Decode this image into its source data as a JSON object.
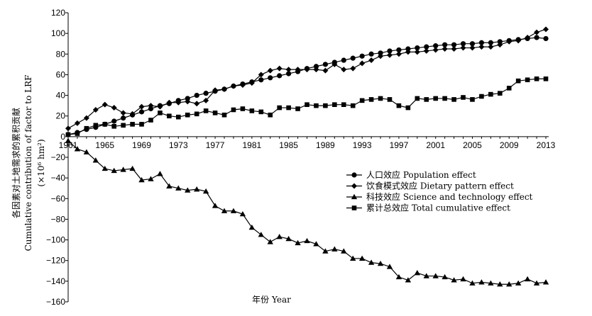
{
  "chart_data": {
    "type": "line",
    "title": "",
    "xlabel": "年份 Year",
    "ylabel_line1": "各因素对土地需求的累积贡献",
    "ylabel_line2": "Cumulative contribution of factor to LRF",
    "ylabel_unit": "(×10⁶ hm²)",
    "ylim": [
      -160,
      120
    ],
    "yticks": [
      -160,
      -140,
      -120,
      -100,
      -80,
      -60,
      -40,
      -20,
      0,
      20,
      40,
      60,
      80,
      100,
      120
    ],
    "xlim": [
      1961,
      2013
    ],
    "xticks": [
      1961,
      1965,
      1969,
      1973,
      1977,
      1981,
      1985,
      1989,
      1993,
      1997,
      2001,
      2005,
      2009,
      2013
    ],
    "legend_position": "right",
    "grid": false,
    "x": [
      1961,
      1962,
      1963,
      1964,
      1965,
      1966,
      1967,
      1968,
      1969,
      1970,
      1971,
      1972,
      1973,
      1974,
      1975,
      1976,
      1977,
      1978,
      1979,
      1980,
      1981,
      1982,
      1983,
      1984,
      1985,
      1986,
      1987,
      1988,
      1989,
      1990,
      1991,
      1992,
      1993,
      1994,
      1995,
      1996,
      1997,
      1998,
      1999,
      2000,
      2001,
      2002,
      2003,
      2004,
      2005,
      2006,
      2007,
      2008,
      2009,
      2010,
      2011,
      2012,
      2013
    ],
    "series": [
      {
        "name": "人口效应 Population effect",
        "marker": "circle",
        "values": [
          2,
          4,
          7,
          9,
          12,
          15,
          18,
          21,
          24,
          27,
          30,
          32,
          35,
          37,
          40,
          42,
          44,
          46,
          49,
          51,
          53,
          55,
          57,
          59,
          61,
          63,
          66,
          68,
          70,
          72,
          74,
          76,
          78,
          80,
          81,
          83,
          84,
          85,
          86,
          87,
          88,
          89,
          89,
          90,
          90,
          91,
          91,
          92,
          93,
          94,
          95,
          96,
          95
        ]
      },
      {
        "name": "饮食模式效应 Dietary pattern effect",
        "marker": "diamond",
        "values": [
          8,
          13,
          18,
          26,
          31,
          28,
          23,
          22,
          29,
          30,
          29,
          33,
          33,
          34,
          32,
          35,
          45,
          46,
          49,
          50,
          52,
          60,
          64,
          66,
          65,
          65,
          65,
          65,
          64,
          70,
          65,
          66,
          71,
          74,
          78,
          79,
          80,
          82,
          82,
          83,
          84,
          85,
          85,
          86,
          86,
          87,
          87,
          89,
          92,
          93,
          96,
          101,
          104
        ]
      },
      {
        "name": "科技效应 Science and technology effect",
        "marker": "triangle",
        "values": [
          -4,
          -12,
          -15,
          -23,
          -31,
          -33,
          -32,
          -31,
          -42,
          -41,
          -36,
          -48,
          -50,
          -52,
          -51,
          -53,
          -67,
          -72,
          -72,
          -75,
          -88,
          -95,
          -102,
          -97,
          -99,
          -103,
          -101,
          -104,
          -111,
          -109,
          -111,
          -118,
          -118,
          -122,
          -123,
          -126,
          -136,
          -139,
          -132,
          -135,
          -135,
          -136,
          -139,
          -138,
          -142,
          -141,
          -142,
          -143,
          -143,
          -142,
          -138,
          -142,
          -141
        ]
      },
      {
        "name": "累计总效应 Total cumulative effect",
        "marker": "square",
        "values": [
          2,
          3,
          8,
          11,
          12,
          10,
          11,
          12,
          12,
          16,
          23,
          20,
          19,
          21,
          22,
          25,
          23,
          21,
          26,
          27,
          25,
          24,
          21,
          28,
          28,
          27,
          31,
          30,
          30,
          31,
          31,
          30,
          35,
          36,
          37,
          36,
          30,
          28,
          37,
          36,
          37,
          37,
          36,
          38,
          36,
          39,
          41,
          42,
          47,
          54,
          55,
          56,
          56
        ]
      }
    ]
  }
}
